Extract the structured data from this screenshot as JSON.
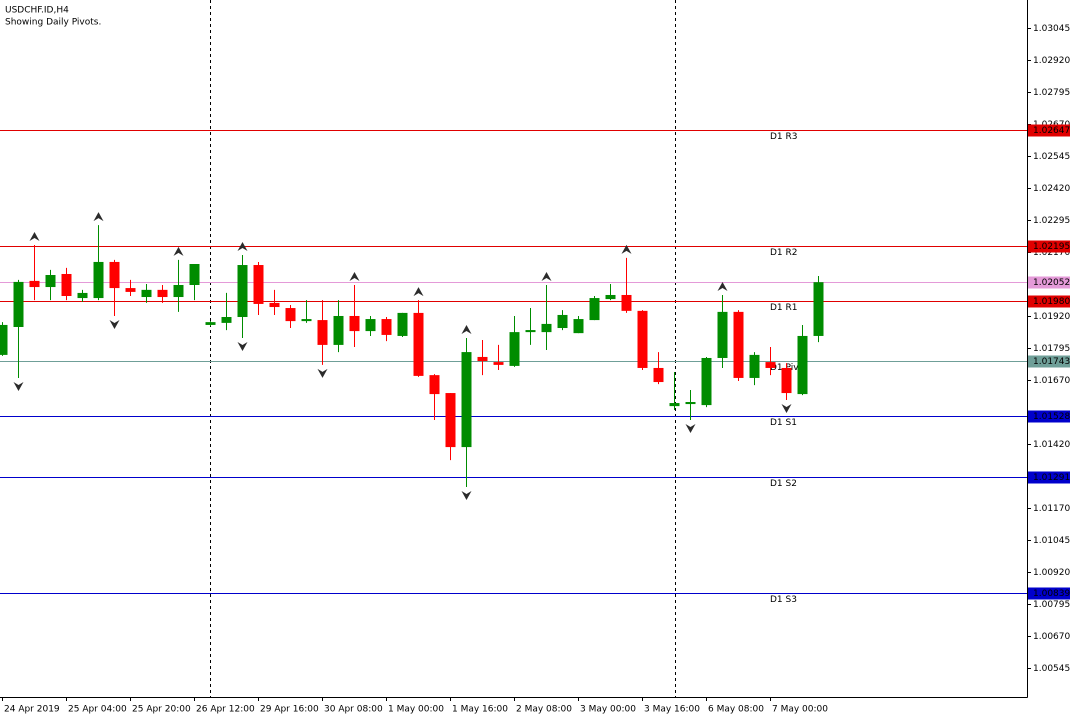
{
  "chart_data": {
    "type": "candlestick",
    "title": "USDCHF.ID,H4",
    "subtitle": "Showing Daily Pivots.",
    "categories": [
      "24 Apr 2019",
      null,
      null,
      null,
      "25 Apr 04:00",
      null,
      null,
      null,
      "25 Apr 20:00",
      null,
      null,
      null,
      "26 Apr 12:00",
      null,
      null,
      null,
      "29 Apr 16:00",
      null,
      null,
      null,
      "30 Apr 08:00",
      null,
      null,
      null,
      "1 May 00:00",
      null,
      null,
      null,
      "1 May 16:00",
      null,
      null,
      null,
      "2 May 08:00",
      null,
      null,
      null,
      "3 May 00:00",
      null,
      null,
      null,
      "3 May 16:00",
      null,
      null,
      null,
      "6 May 08:00",
      null,
      null,
      null,
      "7 May 00:00",
      null,
      null,
      null
    ],
    "open": [
      1.01768,
      1.01877,
      1.02057,
      1.02033,
      1.02084,
      1.0199,
      1.0199,
      1.02131,
      1.02029,
      1.01994,
      1.02022,
      1.01994,
      1.02041,
      1.01885,
      1.01893,
      1.01916,
      1.02119,
      1.01971,
      1.01951,
      1.019,
      1.01904,
      1.01807,
      1.0192,
      1.01861,
      1.01908,
      1.01842,
      1.01932,
      1.01689,
      1.01619,
      1.01408,
      1.0176,
      1.0174,
      1.01725,
      1.01857,
      1.01857,
      1.01873,
      1.01853,
      1.01904,
      1.01986,
      1.02002,
      1.0194,
      1.01717,
      1.01568,
      1.01576,
      1.01572,
      1.01756,
      1.01936,
      1.01678,
      1.0174,
      1.01717,
      1.01615,
      1.01842
    ],
    "high": [
      1.01896,
      1.02061,
      1.02197,
      1.021,
      1.02108,
      1.02022,
      1.02275,
      1.02139,
      1.02061,
      1.02045,
      1.02041,
      1.02139,
      1.02123,
      1.019,
      1.0201,
      1.02158,
      1.02131,
      1.02022,
      1.01963,
      1.01982,
      1.01982,
      1.01982,
      1.02041,
      1.0192,
      1.01916,
      1.01932,
      1.01982,
      1.01693,
      1.01619,
      1.01834,
      1.01826,
      1.01807,
      1.0192,
      1.01951,
      1.02041,
      1.01943,
      1.0192,
      1.01998,
      1.02045,
      1.02147,
      1.01943,
      1.01779,
      1.01701,
      1.01631,
      1.0176,
      1.02002,
      1.01943,
      1.01779,
      1.01799,
      1.01736,
      1.01885,
      1.02076
    ],
    "low": [
      1.01764,
      1.01678,
      1.01982,
      1.01982,
      1.01982,
      1.01975,
      1.01982,
      1.0192,
      1.01998,
      1.01971,
      1.01971,
      1.01936,
      1.01982,
      1.01881,
      1.01865,
      1.01834,
      1.01924,
      1.01924,
      1.01873,
      1.01893,
      1.01729,
      1.01779,
      1.01799,
      1.01842,
      1.01822,
      1.01838,
      1.01682,
      1.01514,
      1.01357,
      1.01252,
      1.01689,
      1.01709,
      1.01721,
      1.01807,
      1.01787,
      1.01865,
      1.01853,
      1.01904,
      1.01982,
      1.01932,
      1.01709,
      1.01654,
      1.01553,
      1.01514,
      1.01564,
      1.01717,
      1.01666,
      1.0165,
      1.01689,
      1.01592,
      1.01611,
      1.01818
    ],
    "close": [
      1.01885,
      1.02053,
      1.02033,
      1.0208,
      1.01998,
      1.0201,
      1.02131,
      1.02029,
      1.02014,
      1.02022,
      1.01994,
      1.02041,
      1.02123,
      1.01896,
      1.01916,
      1.02119,
      1.01967,
      1.01955,
      1.019,
      1.01908,
      1.01807,
      1.0192,
      1.01861,
      1.01908,
      1.01846,
      1.01932,
      1.01686,
      1.01615,
      1.01408,
      1.01779,
      1.01744,
      1.01729,
      1.01857,
      1.01865,
      1.01889,
      1.01924,
      1.01908,
      1.0199,
      1.02002,
      1.0194,
      1.01717,
      1.01662,
      1.0158,
      1.01584,
      1.01756,
      1.01936,
      1.01678,
      1.01768,
      1.01717,
      1.01619,
      1.01842,
      1.02052
    ],
    "up_color": "#008c00",
    "down_color": "#ff0000",
    "fractal_up": [
      2,
      6,
      11,
      15,
      22,
      26,
      29,
      34,
      39,
      45
    ],
    "fractal_down": [
      1,
      7,
      15,
      20,
      29,
      43,
      49
    ],
    "fractal_color": "#2b2b2b",
    "pivots": {
      "names": [
        "D1 R3",
        "D1 R2",
        "D1 R1",
        "D1 Pivot",
        "D1 S1",
        "D1 S2",
        "D1 S3"
      ],
      "values": [
        1.02647,
        1.02195,
        1.0198,
        1.01743,
        1.01528,
        1.01291,
        1.00839
      ],
      "value_labels": [
        "1.02647",
        "1.02195",
        "1.01980",
        "1.01743",
        "1.01528",
        "1.01291",
        "1.00839"
      ],
      "colors": [
        "#e00000",
        "#e00000",
        "#e00000",
        "#6f9f98",
        "#0000cc",
        "#0000cc",
        "#0000cc"
      ]
    },
    "current_price": {
      "value": 1.02052,
      "color": "#e49ad8"
    },
    "ylim": [
      1.00432,
      1.03154
    ],
    "yticks": [
      1.03045,
      {
        "value": 1.0292,
        "label": "1.02920"
      },
      1.02795,
      {
        "value": 1.0267,
        "label": "1.02670"
      },
      1.02545,
      {
        "value": 1.0242,
        "label": "1.02420"
      },
      1.02295,
      {
        "value": 1.0217,
        "label": "1.02170"
      },
      {
        "value": 1.0192,
        "label": "1.01920"
      },
      1.01795,
      {
        "value": 1.0167,
        "label": "1.01670"
      },
      {
        "value": 1.0142,
        "label": "1.01420"
      },
      {
        "value": 1.0117,
        "label": "1.01170"
      },
      1.01045,
      {
        "value": 1.0092,
        "label": "1.00920"
      },
      1.00795,
      {
        "value": 1.0067,
        "label": "1.00670"
      },
      1.00545
    ]
  }
}
